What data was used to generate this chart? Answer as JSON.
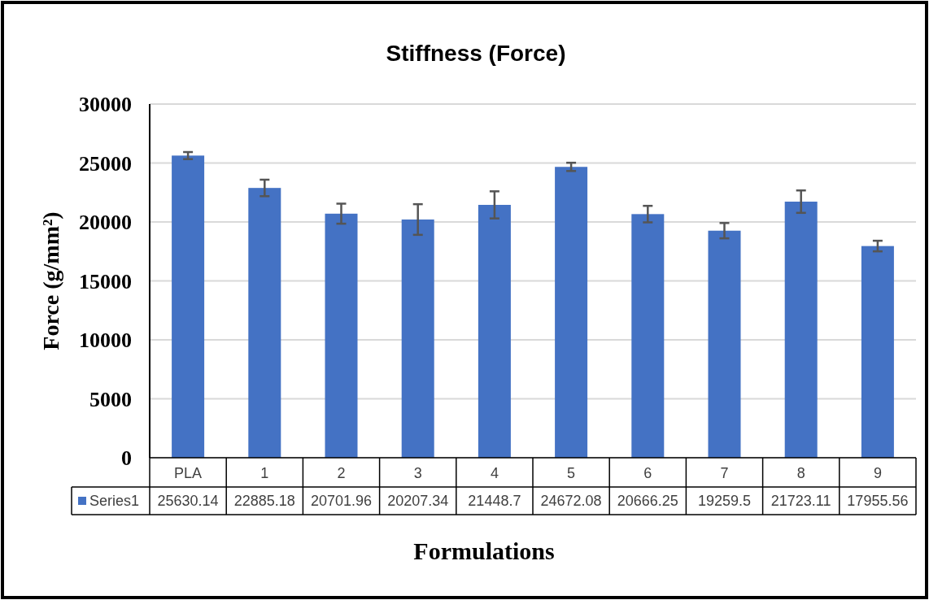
{
  "chart_data": {
    "type": "bar",
    "title": "Stiffness (Force)",
    "xlabel": "Formulations",
    "ylabel": "Force (g/mm²)",
    "categories": [
      "PLA",
      "1",
      "2",
      "3",
      "4",
      "5",
      "6",
      "7",
      "8",
      "9"
    ],
    "series": [
      {
        "name": "Series1",
        "color": "#4472c4",
        "values": [
          25630.14,
          22885.18,
          20701.96,
          20207.34,
          21448.7,
          24672.08,
          20666.25,
          19259.5,
          21723.11,
          17955.56
        ],
        "errors": [
          300,
          700,
          850,
          1300,
          1150,
          350,
          700,
          650,
          950,
          450
        ]
      }
    ],
    "ylim": [
      0,
      30000
    ],
    "yticks": [
      0,
      5000,
      10000,
      15000,
      20000,
      25000,
      30000
    ],
    "grid": "y",
    "legend": "bottom",
    "data_labels": true
  }
}
